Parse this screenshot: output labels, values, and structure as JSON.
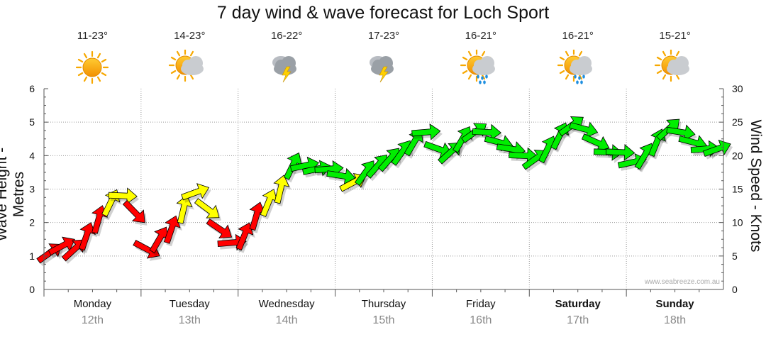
{
  "title": "7 day wind & wave forecast for Loch Sport",
  "watermark": "www.seabreeze.com.au",
  "days": [
    {
      "name": "Monday",
      "date": "12th",
      "temp": "11-23°",
      "icon": "sun-icon",
      "weekend": false
    },
    {
      "name": "Tuesday",
      "date": "13th",
      "temp": "14-23°",
      "icon": "sun-cloud-icon",
      "weekend": false
    },
    {
      "name": "Wednesday",
      "date": "14th",
      "temp": "16-22°",
      "icon": "thunderstorm-icon",
      "weekend": false
    },
    {
      "name": "Thursday",
      "date": "15th",
      "temp": "17-23°",
      "icon": "thunderstorm-icon",
      "weekend": false
    },
    {
      "name": "Friday",
      "date": "16th",
      "temp": "16-21°",
      "icon": "sun-rain-icon",
      "weekend": false
    },
    {
      "name": "Saturday",
      "date": "17th",
      "temp": "16-21°",
      "icon": "sun-rain-icon",
      "weekend": true
    },
    {
      "name": "Sunday",
      "date": "18th",
      "temp": "15-21°",
      "icon": "sun-cloud-icon",
      "weekend": true
    }
  ],
  "colors": {
    "light": "#ff0000",
    "moderate": "#ffff00",
    "strong": "#00ee00",
    "grid": "#999999"
  },
  "chart_data": {
    "type": "line",
    "title": "7 day wind & wave forecast for Loch Sport",
    "ylabel_left": "Wave Height - Metres",
    "ylabel_right": "Wind Speed - Knots",
    "ylim_left": [
      0,
      6
    ],
    "ylim_right": [
      0,
      30
    ],
    "yticks_left": [
      "0",
      "1",
      "2",
      "3",
      "4",
      "5",
      "6"
    ],
    "yticks_right": [
      "0",
      "5",
      "10",
      "15",
      "20",
      "25",
      "30"
    ],
    "x_categories": [
      "Monday 12th",
      "Tuesday 13th",
      "Wednesday 14th",
      "Thursday 15th",
      "Friday 16th",
      "Saturday 17th",
      "Sunday 18th"
    ],
    "grid": true,
    "series": [
      {
        "wind_knots_per_3h": [
          5.5,
          6.5,
          6,
          8,
          10.5,
          13,
          14,
          11.5,
          6,
          7.5,
          9,
          12,
          14.5,
          12,
          9,
          7,
          8,
          11,
          13,
          15,
          18.5,
          18.5,
          18,
          18,
          17,
          16,
          17.5,
          18.5,
          19.5,
          20.5,
          22,
          23.5,
          21,
          20.5,
          22.5,
          23.5,
          23.5,
          22,
          21,
          20,
          19.5,
          21,
          23,
          24.5,
          24,
          22,
          20.5,
          20.5,
          19,
          20,
          22,
          24,
          23.5,
          22,
          21,
          21
        ]
      }
    ]
  }
}
